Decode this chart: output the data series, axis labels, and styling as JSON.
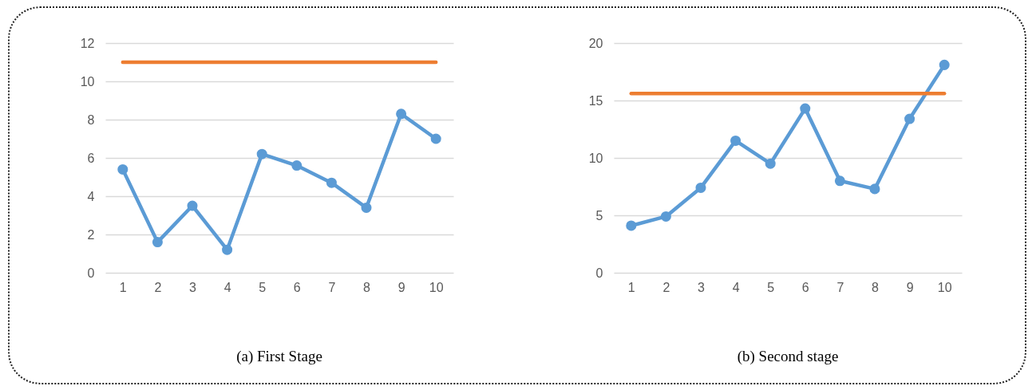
{
  "chart_data": [
    {
      "type": "line",
      "title": "(a) First Stage",
      "categories": [
        "1",
        "2",
        "3",
        "4",
        "5",
        "6",
        "7",
        "8",
        "9",
        "10"
      ],
      "series": [
        {
          "color": "#5b9bd5",
          "marker": "circle",
          "values": [
            5.4,
            1.6,
            3.5,
            1.2,
            6.2,
            5.6,
            4.7,
            3.4,
            8.3,
            7.0
          ]
        },
        {
          "color": "#ed7d31",
          "marker": "none",
          "values": [
            11,
            11,
            11,
            11,
            11,
            11,
            11,
            11,
            11,
            11
          ]
        }
      ],
      "ylim": [
        0,
        12
      ],
      "yticks": [
        0,
        2,
        4,
        6,
        8,
        10,
        12
      ],
      "grid": "y"
    },
    {
      "type": "line",
      "title": "(b) Second stage",
      "categories": [
        "1",
        "2",
        "3",
        "4",
        "5",
        "6",
        "7",
        "8",
        "9",
        "10"
      ],
      "series": [
        {
          "color": "#5b9bd5",
          "marker": "circle",
          "values": [
            4.1,
            4.9,
            7.4,
            11.5,
            9.5,
            14.3,
            8.0,
            7.3,
            13.4,
            18.1
          ]
        },
        {
          "color": "#ed7d31",
          "marker": "none",
          "values": [
            15.6,
            15.6,
            15.6,
            15.6,
            15.6,
            15.6,
            15.6,
            15.6,
            15.6,
            15.6
          ]
        }
      ],
      "ylim": [
        0,
        20
      ],
      "yticks": [
        0,
        5,
        10,
        15,
        20
      ],
      "grid": "y"
    }
  ]
}
